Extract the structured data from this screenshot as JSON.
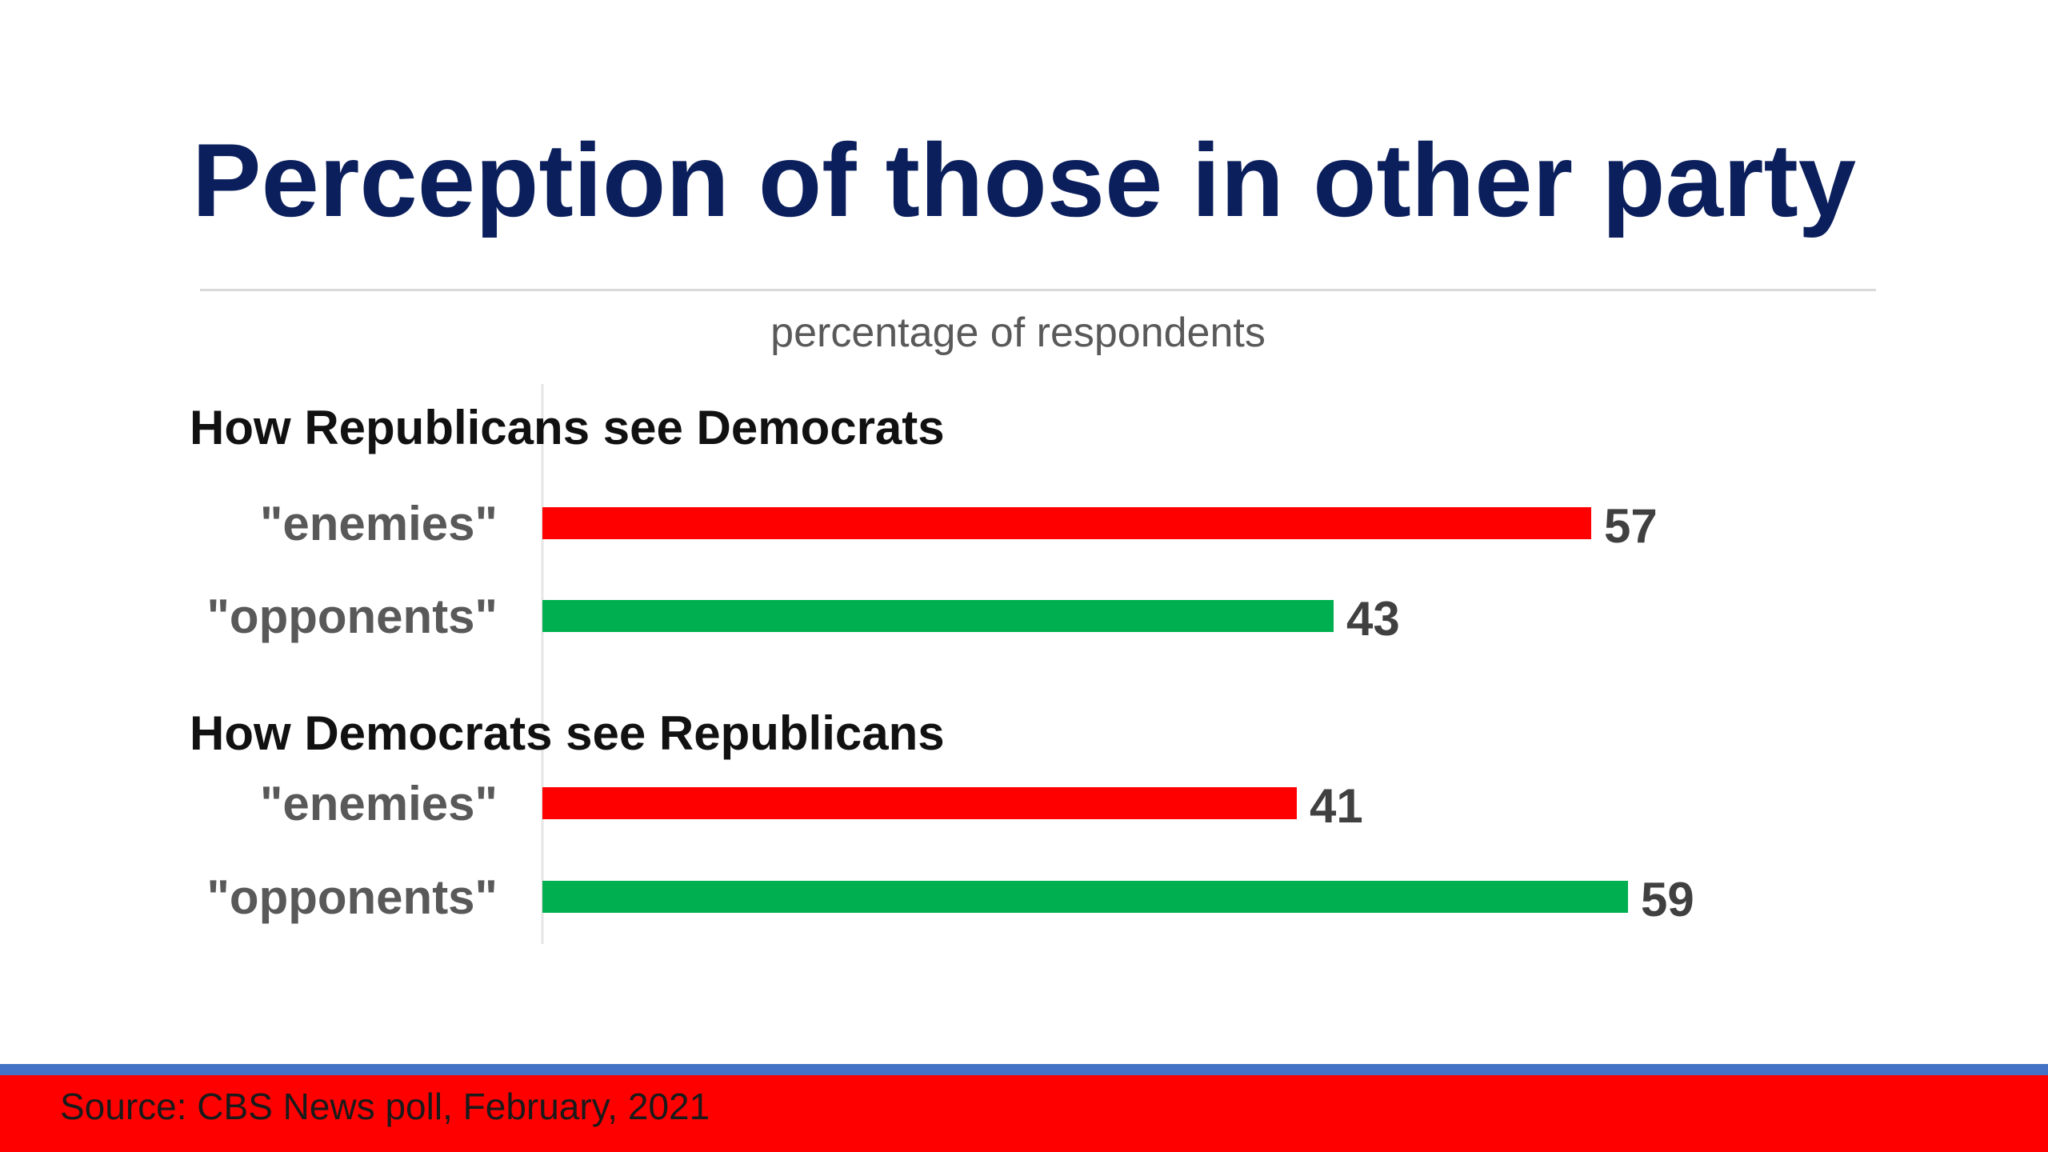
{
  "slide": {
    "title": "Perception of those in other party",
    "source": "Source: CBS News poll, February, 2021"
  },
  "chart_data": {
    "type": "bar",
    "orientation": "horizontal",
    "subtitle": "percentage of respondents",
    "xlim": [
      0,
      70
    ],
    "grid": false,
    "legend": "none",
    "groups": [
      {
        "label": "How Republicans see Democrats",
        "bars": [
          {
            "category": "\"enemies\"",
            "value": 57,
            "value_label": "57",
            "color": "#ff0000"
          },
          {
            "category": "\"opponents\"",
            "value": 43,
            "value_label": "43",
            "color": "#00b050"
          }
        ]
      },
      {
        "label": "How Democrats see Republicans",
        "bars": [
          {
            "category": "\"enemies\"",
            "value": 41,
            "value_label": "41",
            "color": "#ff0000"
          },
          {
            "category": "\"opponents\"",
            "value": 59,
            "value_label": "59",
            "color": "#00b050"
          }
        ]
      }
    ]
  },
  "colors": {
    "title": "#0b1f5c",
    "enemies": "#ff0000",
    "opponents": "#00b050",
    "footer_band": "#ff0000",
    "footer_stripe": "#4472c4"
  }
}
